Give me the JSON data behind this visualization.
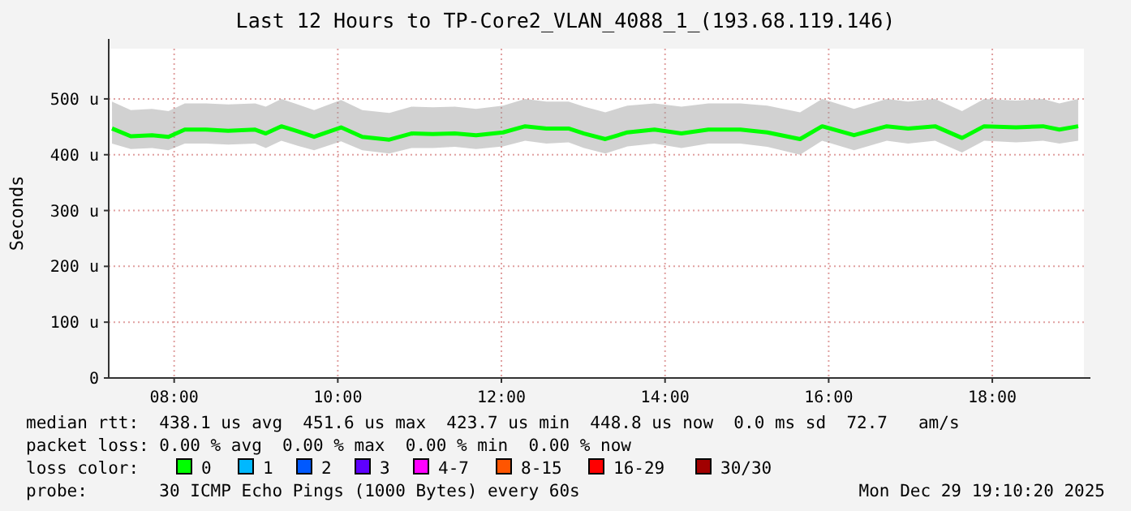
{
  "chart_data": {
    "type": "line",
    "title": "Last 12 Hours to TP-Core2_VLAN_4088_1_(193.68.119.146)",
    "ylabel": "Seconds",
    "xlim": [
      7.2,
      19.12
    ],
    "xticks": [
      {
        "value": 8,
        "label": "08:00"
      },
      {
        "value": 10,
        "label": "10:00"
      },
      {
        "value": 12,
        "label": "12:00"
      },
      {
        "value": 14,
        "label": "14:00"
      },
      {
        "value": 16,
        "label": "16:00"
      },
      {
        "value": 18,
        "label": "18:00"
      }
    ],
    "ylim": [
      0,
      590
    ],
    "yticks": [
      0,
      {
        "value": 100,
        "label": "100 u"
      },
      {
        "value": 200,
        "label": "200 u"
      },
      {
        "value": 300,
        "label": "300 u"
      },
      {
        "value": 400,
        "label": "400 u"
      },
      {
        "value": 500,
        "label": "500 u"
      }
    ],
    "grid": true,
    "line_style": "solid",
    "marker": "none",
    "series": [
      {
        "color": "#00ff00",
        "x": [
          7.24,
          7.47,
          7.73,
          7.93,
          8.13,
          8.39,
          8.66,
          8.99,
          9.12,
          9.31,
          9.51,
          9.71,
          10.04,
          10.3,
          10.63,
          10.9,
          11.16,
          11.43,
          11.69,
          12.02,
          12.29,
          12.55,
          12.82,
          13.01,
          13.27,
          13.54,
          13.87,
          14.2,
          14.53,
          14.92,
          15.25,
          15.65,
          15.92,
          16.31,
          16.71,
          16.97,
          17.3,
          17.63,
          17.9,
          18.29,
          18.62,
          18.82,
          19.05
        ],
        "values": [
          447,
          433,
          435,
          432,
          445,
          445,
          443,
          445,
          438,
          451,
          442,
          432,
          449,
          432,
          427,
          438,
          437,
          438,
          435,
          440,
          451,
          447,
          447,
          438,
          428,
          440,
          445,
          438,
          445,
          445,
          440,
          428,
          451,
          435,
          451,
          447,
          451,
          430,
          451,
          449,
          451,
          445,
          451
        ],
        "lower": [
          420,
          410,
          412,
          408,
          420,
          420,
          418,
          420,
          412,
          425,
          416,
          408,
          424,
          408,
          402,
          412,
          412,
          414,
          410,
          415,
          425,
          420,
          422,
          412,
          402,
          415,
          420,
          412,
          420,
          420,
          414,
          400,
          425,
          408,
          425,
          420,
          425,
          404,
          425,
          422,
          425,
          420,
          425
        ],
        "upper": [
          495,
          480,
          482,
          478,
          492,
          492,
          490,
          492,
          486,
          500,
          490,
          480,
          498,
          480,
          475,
          486,
          485,
          486,
          482,
          488,
          500,
          495,
          495,
          486,
          476,
          488,
          492,
          486,
          492,
          492,
          488,
          476,
          500,
          482,
          500,
          495,
          500,
          478,
          500,
          497,
          500,
          492,
          500
        ]
      }
    ],
    "annotations": [
      "median rtt:  438.1 us avg  451.6 us max  423.7 us min  448.8 us now  0.0 ms sd  72.7   am/s",
      "packet loss: 0.00 % avg  0.00 % max  0.00 % min  0.00 % now",
      "loss color:",
      "0",
      "1",
      "2",
      "3",
      "4-7",
      "8-15",
      "16-29",
      "30/30",
      "probe:       30 ICMP Echo Pings (1000 Bytes) every 60s",
      "Mon Dec 29 19:10:20 2025"
    ]
  }
}
